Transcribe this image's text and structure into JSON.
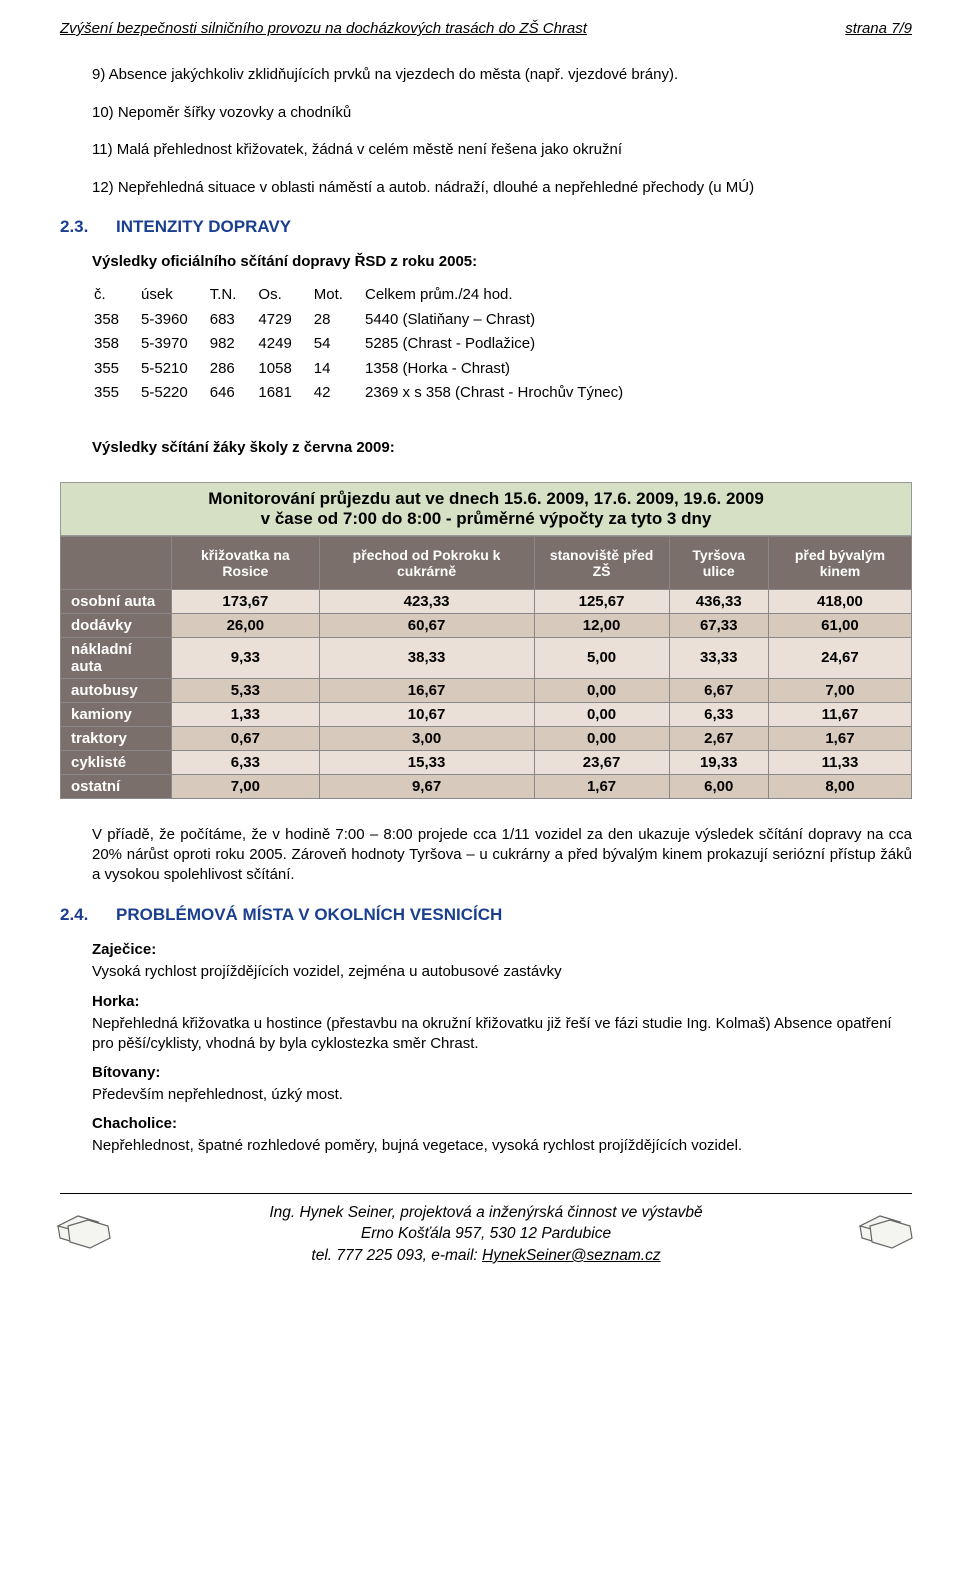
{
  "header": {
    "title_left": "Zvýšení bezpečnosti silničního provozu na docházkových trasách do ZŠ Chrast",
    "title_right": "strana 7/9"
  },
  "items": [
    "9) Absence jakýchkoliv zklidňujících prvků na vjezdech do města (např. vjezdové brány).",
    "10) Nepoměr šířky vozovky a chodníků",
    "11) Malá přehlednost křižovatek, žádná v celém městě není řešena jako okružní",
    "12) Nepřehledná situace v oblasti náměstí a autob. nádraží, dlouhé a nepřehledné přechody (u MÚ)"
  ],
  "section23": {
    "num": "2.3.",
    "title": "INTENZITY DOPRAVY",
    "subtitle": "Výsledky oficiálního sčítání dopravy ŘSD z roku 2005:",
    "header_row": "č.\túsek\tT.N.\tOs.\tMot.\tCelkem prům./24 hod.",
    "columns": [
      "č.",
      "úsek",
      "T.N.",
      "Os.",
      "Mot.",
      "Celkem prům./24 hod."
    ],
    "rows": [
      [
        "358",
        "5-3960",
        "683",
        "4729",
        "28",
        "5440  (Slatiňany – Chrast)"
      ],
      [
        "358",
        "5-3970",
        "982",
        "4249",
        "54",
        "5285  (Chrast  -  Podlažice)"
      ],
      [
        "355",
        "5-5210",
        "286",
        "1058",
        "14",
        "1358  (Horka - Chrast)"
      ],
      [
        "355",
        "5-5220",
        "646",
        "1681",
        "42",
        "2369  x s 358 (Chrast - Hrochův Týnec)"
      ]
    ],
    "subtitle2": "Výsledky sčítání žáky školy z června 2009:"
  },
  "monitor": {
    "title_line1": "Monitorování průjezdu aut ve dnech 15.6. 2009, 17.6. 2009, 19.6. 2009",
    "title_line2": "v čase od 7:00 do 8:00 - průměrné výpočty za tyto 3 dny",
    "columns": [
      "",
      "křižovatka na Rosice",
      "přechod od Pokroku k cukrárně",
      "stanoviště před ZŠ",
      "Tyršova ulice",
      "před bývalým kinem"
    ],
    "row_labels": [
      "osobní auta",
      "dodávky",
      "nákladní auta",
      "autobusy",
      "kamiony",
      "traktory",
      "cyklisté",
      "ostatní"
    ],
    "values": [
      [
        "173,67",
        "423,33",
        "125,67",
        "436,33",
        "418,00"
      ],
      [
        "26,00",
        "60,67",
        "12,00",
        "67,33",
        "61,00"
      ],
      [
        "9,33",
        "38,33",
        "5,00",
        "33,33",
        "24,67"
      ],
      [
        "5,33",
        "16,67",
        "0,00",
        "6,67",
        "7,00"
      ],
      [
        "1,33",
        "10,67",
        "0,00",
        "6,33",
        "11,67"
      ],
      [
        "0,67",
        "3,00",
        "0,00",
        "2,67",
        "1,67"
      ],
      [
        "6,33",
        "15,33",
        "23,67",
        "19,33",
        "11,33"
      ],
      [
        "7,00",
        "9,67",
        "1,67",
        "6,00",
        "8,00"
      ]
    ],
    "colors": {
      "title_bg": "#d6e0c4",
      "header_bg": "#7a6f6a",
      "header_fg": "#ffffff",
      "row_odd_bg": "#eae0d8",
      "row_even_bg": "#d7c9bc",
      "border": "#888888"
    }
  },
  "para_after_table": "V příadě, že počítáme, že v hodině 7:00 – 8:00 projede cca 1/11 vozidel za den ukazuje výsledek sčítání dopravy na cca 20% nárůst oproti roku 2005. Zároveň hodnoty Tyršova – u cukrárny a před bývalým kinem prokazují seriózní přístup žáků a vysokou spolehlivost sčítání.",
  "section24": {
    "num": "2.4.",
    "title": "PROBLÉMOVÁ MÍSTA V OKOLNÍCH VESNICÍCH",
    "villages": [
      {
        "name": "Zaječice:",
        "text": "Vysoká rychlost projíždějících vozidel, zejména u autobusové zastávky"
      },
      {
        "name": "Horka:",
        "text": "Nepřehledná křižovatka u hostince (přestavbu na okružní křižovatku již řeší ve fázi studie Ing. Kolmaš) Absence opatření pro pěší/cyklisty, vhodná by byla cyklostezka směr Chrast."
      },
      {
        "name": "Bítovany:",
        "text": "Především nepřehlednost, úzký most."
      },
      {
        "name": "Chacholice:",
        "text": "Nepřehlednost, špatné rozhledové poměry, bujná vegetace, vysoká rychlost projíždějících vozidel."
      }
    ]
  },
  "footer": {
    "line1": "Ing. Hynek Seiner, projektová a inženýrská činnost ve výstavbě",
    "line2": "Erno Košťála 957, 530 12 Pardubice",
    "line3_prefix": "tel. 777 225 093, e-mail: ",
    "email": "HynekSeiner@seznam.cz"
  }
}
